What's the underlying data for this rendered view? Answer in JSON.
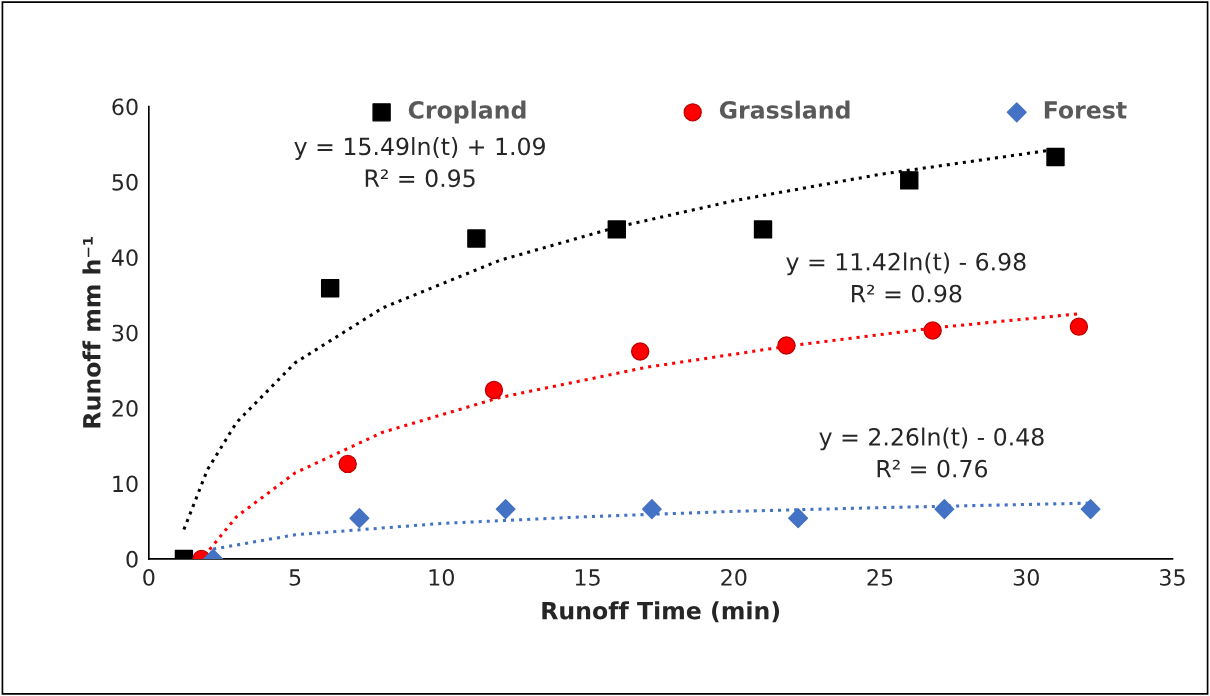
{
  "chart_data": {
    "type": "scatter",
    "xlabel": "Runoff Time (min)",
    "ylabel": "Runoff mm h⁻¹",
    "xlim": [
      0,
      35
    ],
    "xticks": [
      0,
      5,
      10,
      15,
      20,
      25,
      30,
      35
    ],
    "ylim": [
      0,
      60
    ],
    "yticks": [
      0,
      10,
      20,
      30,
      40,
      50,
      60
    ],
    "grid": false,
    "legend": "top",
    "series": [
      {
        "name": "Cropland",
        "marker": "square",
        "color": "#000000",
        "x": [
          1.2,
          6.2,
          11.2,
          16.0,
          21.0,
          26.0,
          31.0
        ],
        "values": [
          0,
          35.9,
          42.5,
          43.7,
          43.7,
          50.2,
          53.3
        ]
      },
      {
        "name": "Grassland",
        "marker": "circle",
        "color": "#ff0000",
        "x": [
          1.8,
          6.8,
          11.8,
          16.8,
          21.8,
          26.8,
          31.8
        ],
        "values": [
          0,
          12.6,
          22.4,
          27.5,
          28.3,
          30.3,
          30.8
        ]
      },
      {
        "name": "Forest",
        "marker": "diamond",
        "color": "#4472c4",
        "x": [
          2.2,
          7.2,
          12.2,
          17.2,
          22.2,
          27.2,
          32.2
        ],
        "values": [
          0,
          5.4,
          6.6,
          6.6,
          5.4,
          6.6,
          6.6
        ]
      },
      {
        "type": "line",
        "line_style": "dotted",
        "color": "#000000",
        "x": [
          1.2,
          2,
          3,
          5,
          8,
          12,
          16,
          20,
          25,
          31
        ],
        "values": [
          3.9,
          11.8,
          18.1,
          26.0,
          33.3,
          39.6,
          44.0,
          47.5,
          51.0,
          54.3
        ]
      },
      {
        "type": "line",
        "line_style": "dotted",
        "color": "#ff0000",
        "x": [
          1.9,
          3,
          5,
          8,
          12,
          17,
          22,
          27,
          31.8
        ],
        "values": [
          0.4,
          5.6,
          11.4,
          16.8,
          21.4,
          25.4,
          28.3,
          30.7,
          32.5
        ]
      },
      {
        "type": "line",
        "line_style": "dotted",
        "color": "#4472c4",
        "x": [
          2.2,
          5,
          10,
          15,
          20,
          25,
          32.2
        ],
        "values": [
          1.3,
          3.2,
          4.7,
          5.6,
          6.3,
          6.8,
          7.4
        ]
      }
    ],
    "annotations": [
      "y = 15.49ln(t) + 1.09\nR² = 0.95",
      "y = 11.42ln(t) - 6.98\nR² = 0.98",
      "y = 2.26ln(t) - 0.48\nR² = 0.76"
    ]
  }
}
